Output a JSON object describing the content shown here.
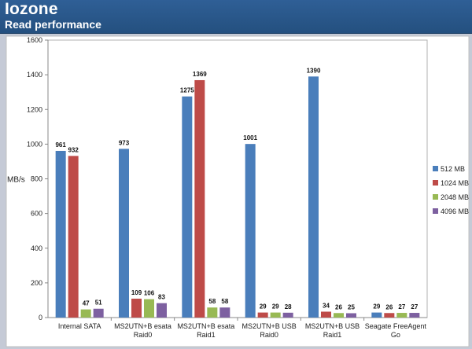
{
  "header": {
    "title": "Iozone",
    "subtitle": "Read performance"
  },
  "chart_data": {
    "type": "bar",
    "title": "Iozone",
    "subtitle": "Read performance",
    "ylabel": "MB/s",
    "xlabel": "",
    "ylim": [
      0,
      1600
    ],
    "yticks": [
      0,
      200,
      400,
      600,
      800,
      1000,
      1200,
      1400,
      1600
    ],
    "grid": false,
    "legend_position": "right",
    "categories": [
      [
        "Internal SATA"
      ],
      [
        "MS2UTN+B esata",
        "Raid0"
      ],
      [
        "MS2UTN+B esata",
        "Raid1"
      ],
      [
        "MS2UTN+B USB",
        "Raid0"
      ],
      [
        "MS2UTN+B USB",
        "Raid1"
      ],
      [
        "Seagate FreeAgent",
        "Go"
      ]
    ],
    "series": [
      {
        "name": "512 MB",
        "color": "#4a7ebb",
        "values": [
          961,
          973,
          1275,
          1001,
          1390,
          29
        ]
      },
      {
        "name": "1024 MB",
        "color": "#be4b48",
        "values": [
          932,
          109,
          1369,
          29,
          34,
          26
        ]
      },
      {
        "name": "2048 MB",
        "color": "#98b954",
        "values": [
          47,
          106,
          58,
          29,
          26,
          27
        ]
      },
      {
        "name": "4096 MB",
        "color": "#7d60a0",
        "values": [
          51,
          83,
          58,
          28,
          25,
          27
        ]
      }
    ]
  }
}
